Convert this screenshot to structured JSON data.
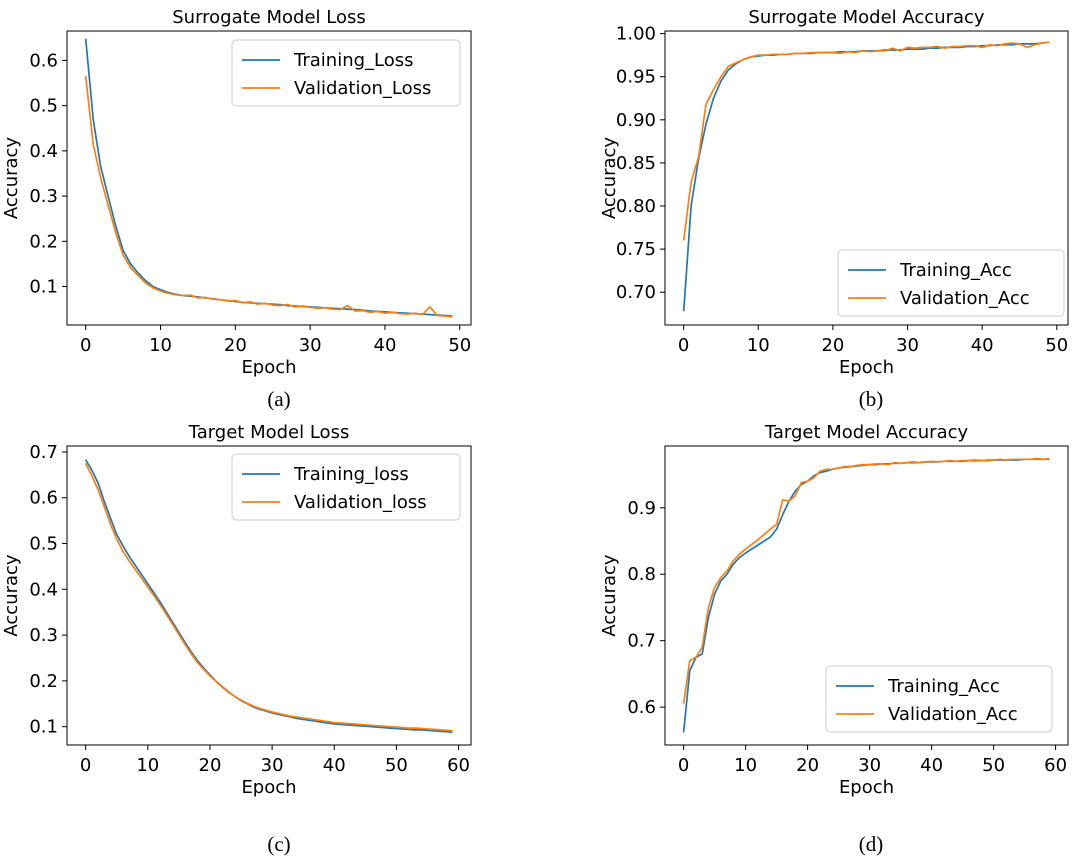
{
  "chart_data": [
    {
      "type": "line",
      "caption": "(a)",
      "title": "Surrogate Model Loss",
      "xlabel": "Epoch",
      "ylabel": "Accuracy",
      "xlim": [
        -2.5,
        51.5
      ],
      "ylim": [
        0.015,
        0.665
      ],
      "xticks": [
        0,
        10,
        20,
        30,
        40,
        50
      ],
      "yticks": [
        0.1,
        0.2,
        0.3,
        0.4,
        0.5,
        0.6
      ],
      "grid": false,
      "legend_position": "top-right",
      "series": [
        {
          "name": "Training_Loss",
          "color": "#1f77b4",
          "x": [
            0,
            1,
            2,
            3,
            4,
            5,
            6,
            7,
            8,
            9,
            10,
            11,
            12,
            13,
            14,
            15,
            16,
            17,
            18,
            19,
            20,
            21,
            22,
            23,
            24,
            25,
            26,
            27,
            28,
            29,
            30,
            31,
            32,
            33,
            34,
            35,
            36,
            37,
            38,
            39,
            40,
            41,
            42,
            43,
            44,
            45,
            46,
            47,
            48,
            49
          ],
          "values": [
            0.648,
            0.47,
            0.365,
            0.3,
            0.235,
            0.18,
            0.15,
            0.13,
            0.113,
            0.1,
            0.093,
            0.087,
            0.083,
            0.08,
            0.079,
            0.077,
            0.075,
            0.073,
            0.071,
            0.069,
            0.067,
            0.065,
            0.064,
            0.063,
            0.062,
            0.061,
            0.06,
            0.058,
            0.057,
            0.056,
            0.055,
            0.054,
            0.053,
            0.052,
            0.051,
            0.05,
            0.049,
            0.048,
            0.046,
            0.045,
            0.044,
            0.043,
            0.042,
            0.041,
            0.04,
            0.039,
            0.038,
            0.037,
            0.036,
            0.035
          ]
        },
        {
          "name": "Validation_Loss",
          "color": "#ff7f0e",
          "x": [
            0,
            1,
            2,
            3,
            4,
            5,
            6,
            7,
            8,
            9,
            10,
            11,
            12,
            13,
            14,
            15,
            16,
            17,
            18,
            19,
            20,
            21,
            22,
            23,
            24,
            25,
            26,
            27,
            28,
            29,
            30,
            31,
            32,
            33,
            34,
            35,
            36,
            37,
            38,
            39,
            40,
            41,
            42,
            43,
            44,
            45,
            46,
            47,
            48,
            49
          ],
          "values": [
            0.565,
            0.415,
            0.34,
            0.28,
            0.22,
            0.17,
            0.142,
            0.124,
            0.108,
            0.097,
            0.09,
            0.085,
            0.082,
            0.08,
            0.081,
            0.075,
            0.076,
            0.072,
            0.071,
            0.068,
            0.069,
            0.064,
            0.066,
            0.061,
            0.063,
            0.059,
            0.058,
            0.06,
            0.055,
            0.057,
            0.054,
            0.052,
            0.053,
            0.05,
            0.049,
            0.058,
            0.046,
            0.047,
            0.043,
            0.045,
            0.041,
            0.043,
            0.04,
            0.039,
            0.041,
            0.038,
            0.055,
            0.036,
            0.035,
            0.033
          ]
        }
      ]
    },
    {
      "type": "line",
      "caption": "(b)",
      "title": "Surrogate Model Accuracy",
      "xlabel": "Epoch",
      "ylabel": "Accuracy",
      "xlim": [
        -2.5,
        51.5
      ],
      "ylim": [
        0.662,
        1.003
      ],
      "xticks": [
        0,
        10,
        20,
        30,
        40,
        50
      ],
      "yticks": [
        0.7,
        0.75,
        0.8,
        0.85,
        0.9,
        0.95,
        1.0
      ],
      "ytick_labels": [
        "0.70",
        "0.75",
        "0.80",
        "0.85",
        "0.90",
        "0.95",
        "1.00"
      ],
      "grid": false,
      "legend_position": "bottom-right",
      "series": [
        {
          "name": "Training_Acc",
          "color": "#1f77b4",
          "x": [
            0,
            1,
            2,
            3,
            4,
            5,
            6,
            7,
            8,
            9,
            10,
            11,
            12,
            13,
            14,
            15,
            16,
            17,
            18,
            19,
            20,
            21,
            22,
            23,
            24,
            25,
            26,
            27,
            28,
            29,
            30,
            31,
            32,
            33,
            34,
            35,
            36,
            37,
            38,
            39,
            40,
            41,
            42,
            43,
            44,
            45,
            46,
            47,
            48,
            49
          ],
          "values": [
            0.678,
            0.8,
            0.855,
            0.895,
            0.925,
            0.945,
            0.958,
            0.965,
            0.97,
            0.973,
            0.974,
            0.975,
            0.975,
            0.976,
            0.976,
            0.977,
            0.977,
            0.977,
            0.978,
            0.978,
            0.978,
            0.979,
            0.979,
            0.979,
            0.98,
            0.98,
            0.98,
            0.981,
            0.981,
            0.981,
            0.982,
            0.982,
            0.982,
            0.983,
            0.983,
            0.984,
            0.984,
            0.984,
            0.985,
            0.985,
            0.986,
            0.986,
            0.987,
            0.987,
            0.987,
            0.988,
            0.988,
            0.988,
            0.989,
            0.99
          ]
        },
        {
          "name": "Validation_Acc",
          "color": "#ff7f0e",
          "x": [
            0,
            1,
            2,
            3,
            4,
            5,
            6,
            7,
            8,
            9,
            10,
            11,
            12,
            13,
            14,
            15,
            16,
            17,
            18,
            19,
            20,
            21,
            22,
            23,
            24,
            25,
            26,
            27,
            28,
            29,
            30,
            31,
            32,
            33,
            34,
            35,
            36,
            37,
            38,
            39,
            40,
            41,
            42,
            43,
            44,
            45,
            46,
            47,
            48,
            49
          ],
          "values": [
            0.76,
            0.828,
            0.857,
            0.918,
            0.935,
            0.95,
            0.962,
            0.966,
            0.97,
            0.973,
            0.975,
            0.975,
            0.976,
            0.976,
            0.976,
            0.977,
            0.977,
            0.978,
            0.978,
            0.978,
            0.978,
            0.977,
            0.979,
            0.978,
            0.98,
            0.979,
            0.98,
            0.98,
            0.983,
            0.98,
            0.984,
            0.983,
            0.984,
            0.984,
            0.985,
            0.983,
            0.985,
            0.985,
            0.986,
            0.986,
            0.984,
            0.987,
            0.986,
            0.988,
            0.989,
            0.988,
            0.984,
            0.987,
            0.989,
            0.99
          ]
        }
      ]
    },
    {
      "type": "line",
      "caption": "(c)",
      "title": "Target Model Loss",
      "xlabel": "Epoch",
      "ylabel": "Accuracy",
      "xlim": [
        -3,
        62
      ],
      "ylim": [
        0.06,
        0.713
      ],
      "xticks": [
        0,
        10,
        20,
        30,
        40,
        50,
        60
      ],
      "yticks": [
        0.1,
        0.2,
        0.3,
        0.4,
        0.5,
        0.6,
        0.7
      ],
      "grid": false,
      "legend_position": "top-right",
      "series": [
        {
          "name": "Training_loss",
          "color": "#1f77b4",
          "x": [
            0,
            1,
            2,
            3,
            4,
            5,
            6,
            7,
            8,
            9,
            10,
            11,
            12,
            13,
            14,
            15,
            16,
            17,
            18,
            19,
            20,
            21,
            22,
            23,
            24,
            25,
            26,
            27,
            28,
            29,
            30,
            31,
            32,
            33,
            34,
            35,
            36,
            37,
            38,
            39,
            40,
            41,
            42,
            43,
            44,
            45,
            46,
            47,
            48,
            49,
            50,
            51,
            52,
            53,
            54,
            55,
            56,
            57,
            58,
            59
          ],
          "values": [
            0.683,
            0.66,
            0.632,
            0.592,
            0.555,
            0.52,
            0.495,
            0.472,
            0.452,
            0.432,
            0.412,
            0.392,
            0.372,
            0.35,
            0.328,
            0.306,
            0.284,
            0.263,
            0.244,
            0.228,
            0.213,
            0.199,
            0.187,
            0.176,
            0.166,
            0.157,
            0.15,
            0.143,
            0.138,
            0.134,
            0.13,
            0.127,
            0.124,
            0.121,
            0.118,
            0.116,
            0.114,
            0.112,
            0.11,
            0.108,
            0.106,
            0.105,
            0.104,
            0.103,
            0.102,
            0.101,
            0.1,
            0.099,
            0.098,
            0.097,
            0.096,
            0.095,
            0.094,
            0.093,
            0.093,
            0.092,
            0.091,
            0.09,
            0.089,
            0.088
          ]
        },
        {
          "name": "Validation_loss",
          "color": "#ff7f0e",
          "x": [
            0,
            1,
            2,
            3,
            4,
            5,
            6,
            7,
            8,
            9,
            10,
            11,
            12,
            13,
            14,
            15,
            16,
            17,
            18,
            19,
            20,
            21,
            22,
            23,
            24,
            25,
            26,
            27,
            28,
            29,
            30,
            31,
            32,
            33,
            34,
            35,
            36,
            37,
            38,
            39,
            40,
            41,
            42,
            43,
            44,
            45,
            46,
            47,
            48,
            49,
            50,
            51,
            52,
            53,
            54,
            55,
            56,
            57,
            58,
            59
          ],
          "values": [
            0.675,
            0.648,
            0.618,
            0.58,
            0.542,
            0.51,
            0.483,
            0.462,
            0.443,
            0.424,
            0.405,
            0.386,
            0.366,
            0.345,
            0.323,
            0.301,
            0.279,
            0.259,
            0.24,
            0.225,
            0.211,
            0.198,
            0.186,
            0.175,
            0.166,
            0.158,
            0.151,
            0.145,
            0.14,
            0.136,
            0.132,
            0.129,
            0.126,
            0.123,
            0.121,
            0.119,
            0.117,
            0.115,
            0.113,
            0.111,
            0.109,
            0.108,
            0.107,
            0.106,
            0.105,
            0.104,
            0.103,
            0.102,
            0.101,
            0.1,
            0.099,
            0.098,
            0.097,
            0.097,
            0.096,
            0.095,
            0.094,
            0.093,
            0.092,
            0.091
          ]
        }
      ]
    },
    {
      "type": "line",
      "caption": "(d)",
      "title": "Target Model Accuracy",
      "xlabel": "Epoch",
      "ylabel": "Accuracy",
      "xlim": [
        -3,
        62
      ],
      "ylim": [
        0.543,
        0.993
      ],
      "xticks": [
        0,
        10,
        20,
        30,
        40,
        50,
        60
      ],
      "yticks": [
        0.6,
        0.7,
        0.8,
        0.9
      ],
      "grid": false,
      "legend_position": "bottom-right",
      "series": [
        {
          "name": "Training_Acc",
          "color": "#1f77b4",
          "x": [
            0,
            1,
            2,
            3,
            4,
            5,
            6,
            7,
            8,
            9,
            10,
            11,
            12,
            13,
            14,
            15,
            16,
            17,
            18,
            19,
            20,
            21,
            22,
            23,
            24,
            25,
            26,
            27,
            28,
            29,
            30,
            31,
            32,
            33,
            34,
            35,
            36,
            37,
            38,
            39,
            40,
            41,
            42,
            43,
            44,
            45,
            46,
            47,
            48,
            49,
            50,
            51,
            52,
            53,
            54,
            55,
            56,
            57,
            58,
            59
          ],
          "values": [
            0.562,
            0.655,
            0.675,
            0.68,
            0.735,
            0.77,
            0.79,
            0.8,
            0.815,
            0.825,
            0.832,
            0.838,
            0.844,
            0.85,
            0.856,
            0.868,
            0.89,
            0.91,
            0.925,
            0.935,
            0.94,
            0.948,
            0.953,
            0.955,
            0.958,
            0.96,
            0.961,
            0.962,
            0.963,
            0.964,
            0.965,
            0.965,
            0.966,
            0.966,
            0.967,
            0.967,
            0.968,
            0.968,
            0.968,
            0.969,
            0.969,
            0.969,
            0.97,
            0.97,
            0.97,
            0.97,
            0.971,
            0.971,
            0.971,
            0.971,
            0.972,
            0.972,
            0.972,
            0.972,
            0.972,
            0.973,
            0.973,
            0.973,
            0.973,
            0.973
          ]
        },
        {
          "name": "Validation_Acc",
          "color": "#ff7f0e",
          "x": [
            0,
            1,
            2,
            3,
            4,
            5,
            6,
            7,
            8,
            9,
            10,
            11,
            12,
            13,
            14,
            15,
            16,
            17,
            18,
            19,
            20,
            21,
            22,
            23,
            24,
            25,
            26,
            27,
            28,
            29,
            30,
            31,
            32,
            33,
            34,
            35,
            36,
            37,
            38,
            39,
            40,
            41,
            42,
            43,
            44,
            45,
            46,
            47,
            48,
            49,
            50,
            51,
            52,
            53,
            54,
            55,
            56,
            57,
            58,
            59
          ],
          "values": [
            0.605,
            0.67,
            0.675,
            0.69,
            0.75,
            0.78,
            0.795,
            0.805,
            0.82,
            0.83,
            0.838,
            0.845,
            0.852,
            0.86,
            0.868,
            0.875,
            0.912,
            0.91,
            0.918,
            0.938,
            0.94,
            0.945,
            0.955,
            0.958,
            0.958,
            0.96,
            0.962,
            0.962,
            0.964,
            0.965,
            0.965,
            0.966,
            0.966,
            0.965,
            0.968,
            0.967,
            0.968,
            0.969,
            0.968,
            0.969,
            0.97,
            0.969,
            0.97,
            0.971,
            0.97,
            0.971,
            0.971,
            0.972,
            0.971,
            0.972,
            0.972,
            0.973,
            0.972,
            0.973,
            0.973,
            0.973,
            0.973,
            0.974,
            0.973,
            0.974
          ]
        }
      ]
    }
  ]
}
